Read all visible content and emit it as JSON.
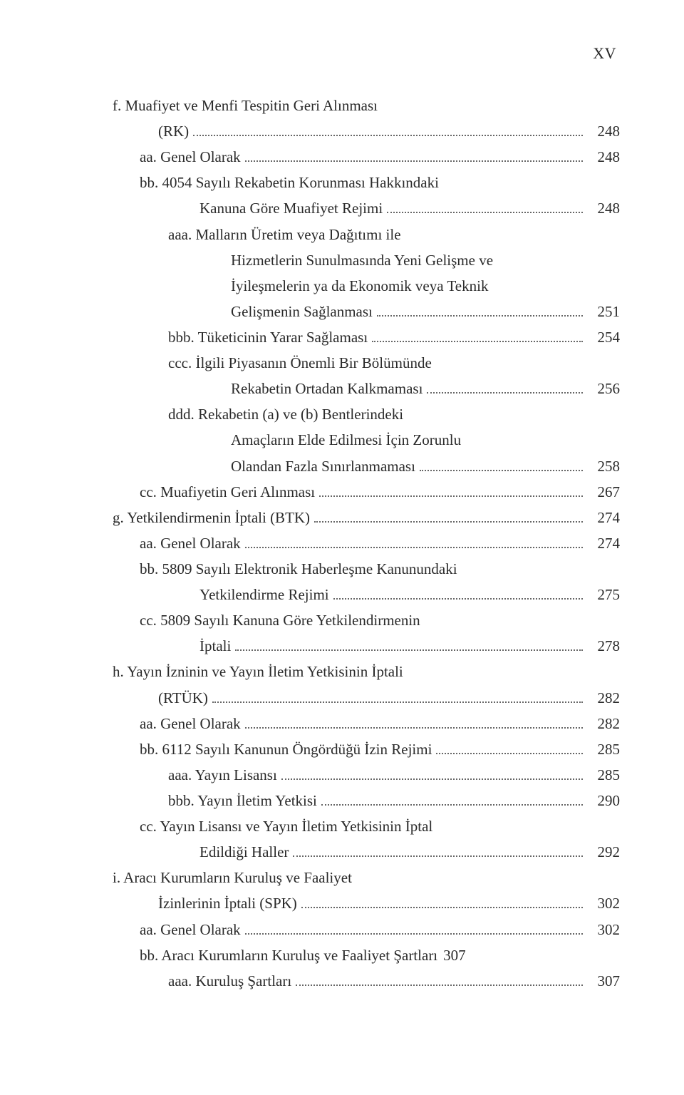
{
  "page_number": "XV",
  "toc": [
    {
      "indent": "indent-1",
      "label": "f.  Muafiyet ve Menfi Tespitin Geri Alınması"
    },
    {
      "indent": "indent-2-cont",
      "label": "(RK)",
      "page": "248"
    },
    {
      "indent": "indent-3",
      "label": "aa. Genel Olarak",
      "page": "248"
    },
    {
      "indent": "indent-3",
      "label": "bb. 4054 Sayılı Rekabetin Korunması Hakkındaki"
    },
    {
      "indent": "indent-4-cont",
      "label": "Kanuna Göre Muafiyet Rejimi",
      "page": "248"
    },
    {
      "indent": "indent-4",
      "label": "aaa. Malların Üretim veya Dağıtımı ile"
    },
    {
      "indent": "indent-5-cont",
      "label": "Hizmetlerin Sunulmasında Yeni Gelişme ve"
    },
    {
      "indent": "indent-5-cont",
      "label": "İyileşmelerin ya da Ekonomik veya Teknik"
    },
    {
      "indent": "indent-5-cont",
      "label": "Gelişmenin Sağlanması",
      "page": "251"
    },
    {
      "indent": "indent-4",
      "label": "bbb. Tüketicinin Yarar Sağlaması",
      "page": "254"
    },
    {
      "indent": "indent-4",
      "label": "ccc.  İlgili Piyasanın Önemli Bir Bölümünde"
    },
    {
      "indent": "indent-5-cont",
      "label": "Rekabetin Ortadan Kalkmaması",
      "page": "256"
    },
    {
      "indent": "indent-4",
      "label": "ddd. Rekabetin (a) ve (b) Bentlerindeki"
    },
    {
      "indent": "indent-5-cont",
      "label": "Amaçların Elde Edilmesi İçin Zorunlu"
    },
    {
      "indent": "indent-5-cont",
      "label": "Olandan Fazla Sınırlanmaması",
      "page": "258"
    },
    {
      "indent": "indent-3",
      "label": "cc. Muafiyetin Geri Alınması",
      "page": "267"
    },
    {
      "indent": "indent-1",
      "label": "g.  Yetkilendirmenin İptali (BTK)",
      "page": "274"
    },
    {
      "indent": "indent-3",
      "label": "aa. Genel Olarak",
      "page": "274"
    },
    {
      "indent": "indent-3",
      "label": "bb. 5809 Sayılı Elektronik Haberleşme Kanunundaki"
    },
    {
      "indent": "indent-4-cont",
      "label": "Yetkilendirme Rejimi",
      "page": "275"
    },
    {
      "indent": "indent-3",
      "label": "cc. 5809 Sayılı Kanuna Göre Yetkilendirmenin"
    },
    {
      "indent": "indent-4-cont",
      "label": "İptali",
      "page": "278"
    },
    {
      "indent": "indent-1",
      "label": "h.  Yayın İzninin ve Yayın İletim Yetkisinin İptali"
    },
    {
      "indent": "indent-2-cont",
      "label": "(RTÜK)",
      "page": "282"
    },
    {
      "indent": "indent-3",
      "label": "aa. Genel Olarak",
      "page": "282"
    },
    {
      "indent": "indent-3",
      "label": "bb. 6112 Sayılı Kanunun Öngördüğü İzin Rejimi",
      "page": "285"
    },
    {
      "indent": "indent-4",
      "label": "aaa. Yayın Lisansı",
      "page": "285"
    },
    {
      "indent": "indent-4",
      "label": "bbb. Yayın İletim Yetkisi",
      "page": "290"
    },
    {
      "indent": "indent-3",
      "label": "cc. Yayın Lisansı ve Yayın İletim Yetkisinin İptal"
    },
    {
      "indent": "indent-4-cont",
      "label": "Edildiği Haller",
      "page": "292"
    },
    {
      "indent": "indent-1",
      "label": "i.   Aracı Kurumların Kuruluş ve Faaliyet"
    },
    {
      "indent": "indent-2-cont",
      "label": "İzinlerinin İptali (SPK)",
      "page": "302"
    },
    {
      "indent": "indent-3",
      "label": "aa. Genel Olarak",
      "page": "302"
    },
    {
      "indent": "indent-3",
      "label": "bb. Aracı Kurumların Kuruluş ve Faaliyet Şartları",
      "page": "307",
      "tight": true
    },
    {
      "indent": "indent-4",
      "label": "aaa. Kuruluş Şartları",
      "page": "307"
    }
  ]
}
